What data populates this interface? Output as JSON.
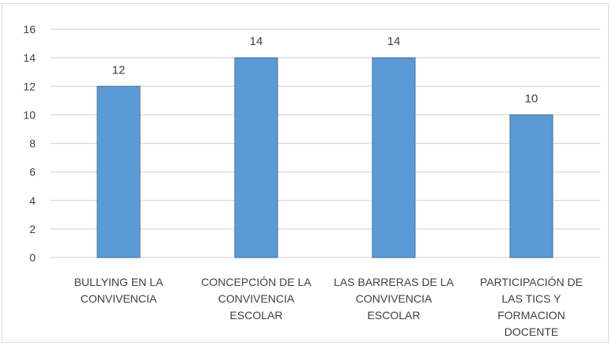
{
  "chart_data": {
    "type": "bar",
    "categories": [
      [
        "BULLYING EN LA",
        "CONVIVENCIA"
      ],
      [
        "CONCEPCIÓN DE LA",
        "CONVIVENCIA",
        "ESCOLAR"
      ],
      [
        "LAS BARRERAS DE LA",
        "CONVIVENCIA",
        "ESCOLAR"
      ],
      [
        "PARTICIPACIÓN DE",
        "LAS TICS Y",
        "FORMACION",
        "DOCENTE"
      ]
    ],
    "values": [
      12,
      14,
      14,
      10
    ],
    "title": "",
    "xlabel": "",
    "ylabel": "",
    "ylim": [
      0,
      16
    ],
    "yticks": [
      0,
      2,
      4,
      6,
      8,
      10,
      12,
      14,
      16
    ],
    "grid": true,
    "bar_color": "#5b9bd5",
    "bar_edge_color": "#41719c",
    "gridline_color": "#d9d9d9",
    "data_labels": true
  }
}
